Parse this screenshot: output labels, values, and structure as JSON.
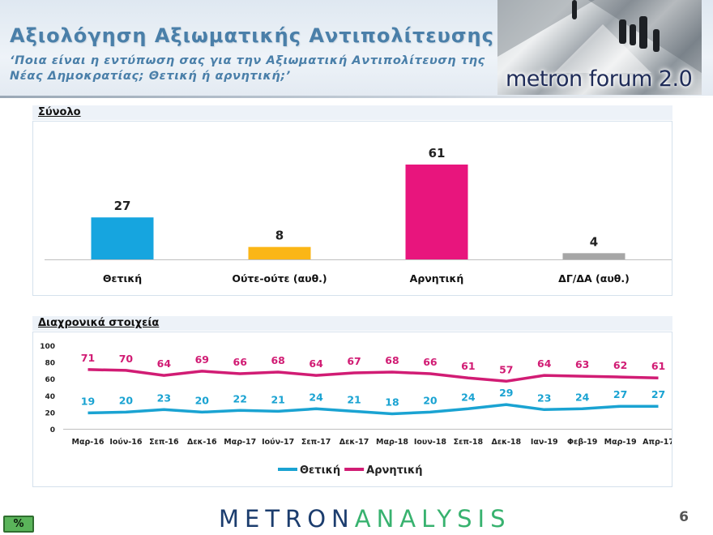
{
  "header": {
    "title": "Αξιολόγηση Αξιωματικής Αντιπολίτευσης",
    "subtitle": "‘Ποια είναι η εντύπωση σας για την Αξιωματική Αντιπολίτευση της Νέας Δημοκρατίας; Θετική ή αρνητική;’",
    "brand": "metron forum 2.0"
  },
  "sections": {
    "total_label": "Σύνολο",
    "trend_label": "Διαχρονικά στοιχεία"
  },
  "chart_data": [
    {
      "type": "bar",
      "categories": [
        "Θετική",
        "Ούτε-ούτε (αυθ.)",
        "Αρνητική",
        "ΔΓ/ΔΑ (αυθ.)"
      ],
      "values": [
        27,
        8,
        61,
        4
      ],
      "colors": [
        "#16a5df",
        "#fbb616",
        "#e8157d",
        "#a6a6a6"
      ],
      "ylim": [
        0,
        61
      ]
    },
    {
      "type": "line",
      "x": [
        "Μαρ-16",
        "Ιούν-16",
        "Σεπ-16",
        "Δεκ-16",
        "Μαρ-17",
        "Ιούν-17",
        "Σεπ-17",
        "Δεκ-17",
        "Μαρ-18",
        "Ιουν-18",
        "Σεπ-18",
        "Δεκ-18",
        "Ιαν-19",
        "Φεβ-19",
        "Μαρ-19",
        "Απρ-17"
      ],
      "series": [
        {
          "name": "Θετική",
          "color": "#1aa3d2",
          "values": [
            19,
            20,
            23,
            20,
            22,
            21,
            24,
            21,
            18,
            20,
            24,
            29,
            23,
            24,
            27,
            27
          ]
        },
        {
          "name": "Αρνητική",
          "color": "#d11c74",
          "values": [
            71,
            70,
            64,
            69,
            66,
            68,
            64,
            67,
            68,
            66,
            61,
            57,
            64,
            63,
            62,
            61
          ]
        }
      ],
      "ylim": [
        0,
        100
      ],
      "yticks": [
        0,
        20,
        40,
        60,
        80,
        100
      ],
      "grid": false,
      "legend": "bottom"
    }
  ],
  "footer": {
    "percent_badge": "%",
    "logo_part1": "METRON",
    "logo_part2": "ANALYSIS",
    "page_number": "6"
  }
}
